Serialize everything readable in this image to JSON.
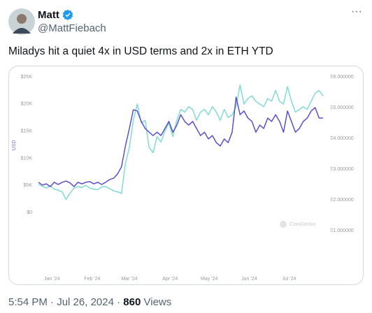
{
  "header": {
    "name": "Matt",
    "handle": "@MattFiebach",
    "more": "···"
  },
  "text": "Miladys hit a quiet 4x in USD terms and 2x in ETH YTD",
  "footer": {
    "time": "5:54 PM",
    "sep1": "·",
    "date": "Jul 26, 2024",
    "sep2": "·",
    "views_count": "860",
    "views_label": "Views"
  },
  "chart_data": {
    "type": "line",
    "ylabel": "USD",
    "watermark": "CoinGecko",
    "ylim": [
      -9000,
      25000
    ],
    "yticks": [
      {
        "value": 0,
        "label": "$0"
      },
      {
        "value": 5000,
        "label": "$5K"
      },
      {
        "value": 10000,
        "label": "$10K"
      },
      {
        "value": 15000,
        "label": "$15K"
      },
      {
        "value": 20000,
        "label": "$20K"
      },
      {
        "value": 25000,
        "label": "$25K"
      }
    ],
    "y2lim": [
      0,
      6
    ],
    "y2ticks": [
      {
        "value": 1,
        "label": "Ξ1.000000"
      },
      {
        "value": 2,
        "label": "Ξ2.000000"
      },
      {
        "value": 3,
        "label": "Ξ3.000000"
      },
      {
        "value": 4,
        "label": "Ξ4.000000"
      },
      {
        "value": 5,
        "label": "Ξ5.000000"
      },
      {
        "value": 6,
        "label": "Ξ6.000000"
      }
    ],
    "xlim": [
      0,
      72
    ],
    "xticks": [
      {
        "value": 3.4,
        "label": "Jan '24"
      },
      {
        "value": 13.6,
        "label": "Feb '24"
      },
      {
        "value": 23,
        "label": "Mar '24"
      },
      {
        "value": 33.3,
        "label": "Apr '24"
      },
      {
        "value": 43.2,
        "label": "May '24"
      },
      {
        "value": 53.3,
        "label": "Jun '24"
      },
      {
        "value": 63.4,
        "label": "Jul '24"
      }
    ],
    "grid": false,
    "series": [
      {
        "color": "#7fdcd3",
        "values": [
          5200,
          4800,
          4500,
          4900,
          4300,
          4100,
          3800,
          2400,
          3600,
          4500,
          4800,
          4600,
          5000,
          4500,
          4300,
          4200,
          4700,
          4800,
          4400,
          4000,
          3800,
          3500,
          9000,
          12000,
          17000,
          20000,
          16500,
          17000,
          12000,
          11000,
          14000,
          13000,
          15000,
          16500,
          14000,
          17000,
          19000,
          18500,
          19500,
          19000,
          17000,
          18500,
          19000,
          18000,
          19500,
          18500,
          17000,
          19000,
          17500,
          18000,
          19500,
          23500,
          20000,
          21000,
          21500,
          20500,
          20000,
          19500,
          21000,
          20500,
          22500,
          20500,
          20000,
          23200,
          20500,
          18500,
          19000,
          19500,
          19000,
          20500,
          22000,
          22500,
          21500
        ]
      },
      {
        "color": "#5a4fcf",
        "axis": "y2",
        "values": [
          2.57,
          2.48,
          2.52,
          2.43,
          2.57,
          2.5,
          2.57,
          2.61,
          2.55,
          2.43,
          2.57,
          2.52,
          2.57,
          2.59,
          2.52,
          2.57,
          2.5,
          2.57,
          2.66,
          2.7,
          2.84,
          3.07,
          3.75,
          4.32,
          4.93,
          4.89,
          4.55,
          4.32,
          4.2,
          4.09,
          4.2,
          4.09,
          4.32,
          4.55,
          4.2,
          4.43,
          4.77,
          4.55,
          4.43,
          4.55,
          4.32,
          4.09,
          4.2,
          3.98,
          4.09,
          3.86,
          3.75,
          3.98,
          3.86,
          4.2,
          5.34,
          4.77,
          4.89,
          4.66,
          4.55,
          4.2,
          4.43,
          4.32,
          4.66,
          4.55,
          4.77,
          4.55,
          4.2,
          4.89,
          4.55,
          4.2,
          4.32,
          4.55,
          4.66,
          4.89,
          5,
          4.66,
          4.66
        ]
      }
    ]
  }
}
